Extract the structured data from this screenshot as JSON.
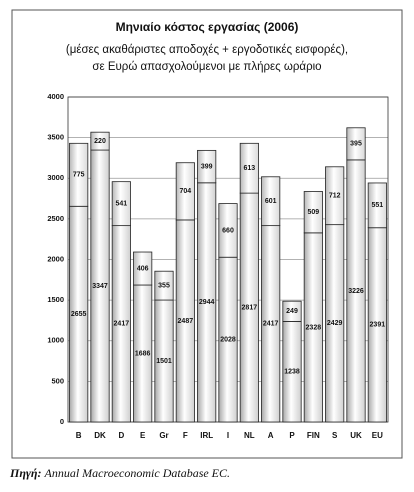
{
  "chart_data": {
    "type": "stacked_bar",
    "title": "Μηνιαίο κόστος εργασίας (2006)",
    "subtitle": [
      "(μέσες ακαθάριστες αποδοχές + εργοδοτικές εισφορές),",
      "σε Ευρώ απασχολούμενοι με πλήρες ωράριο"
    ],
    "categories": [
      "B",
      "DK",
      "D",
      "E",
      "Gr",
      "F",
      "IRL",
      "I",
      "NL",
      "A",
      "P",
      "FIN",
      "S",
      "UK",
      "EU"
    ],
    "series": [
      {
        "color": "#c8c8c8",
        "values": [
          2655,
          3347,
          2417,
          1686,
          1501,
          2487,
          2944,
          2028,
          2817,
          2417,
          1238,
          2328,
          2429,
          3226,
          2391
        ]
      },
      {
        "color": "#c8c8c8",
        "values": [
          775,
          220,
          541,
          406,
          355,
          704,
          399,
          660,
          613,
          601,
          249,
          509,
          712,
          395,
          551
        ]
      }
    ],
    "ylim": [
      0,
      4000
    ],
    "yticks": [
      0,
      500,
      1000,
      1500,
      2000,
      2500,
      3000,
      3500,
      4000
    ],
    "grid": true,
    "source_label": "Πηγή:",
    "source": "Annual Macroeconomic Database EC."
  }
}
